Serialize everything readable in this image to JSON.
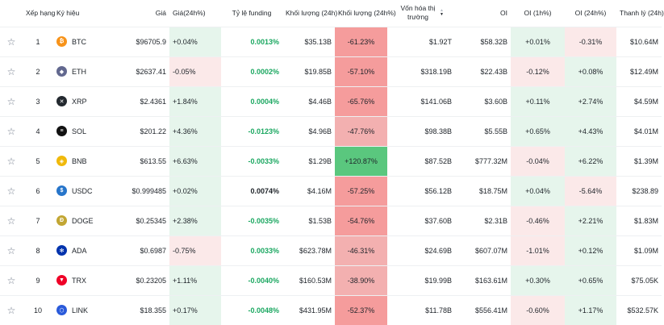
{
  "headers": {
    "star": "",
    "rank": "Xếp hạng",
    "symbol": "Ký hiệu",
    "price": "Giá",
    "change": "Giá(24h%)",
    "funding": "Tỷ lệ funding",
    "volume": "Khối lượng (24h)",
    "volume_pct": "Khối lượng (24h%)",
    "mcap": "Vốn hóa thị trường",
    "oi": "OI",
    "oi1h": "OI (1h%)",
    "oi24h": "OI (24h%)",
    "liq": "Thanh lý (24h)"
  },
  "colors": {
    "green_text": "#1aa760",
    "green_light": "#e6f5ec",
    "green_strong": "#5ac77e",
    "red_light": "#fbe9e9",
    "red_mid": "#f3b0b0",
    "red_strong": "#f59c9c"
  },
  "rows": [
    {
      "star": "☆",
      "rank": "1",
      "symbol": "BTC",
      "icon": "bitcoin-icon",
      "icon_color": "#f7931a",
      "icon_glyph": "₿",
      "price": "$96705.9",
      "change": "+0.04%",
      "change_bg": "green_light",
      "funding": "0.0013%",
      "funding_dir": "pos",
      "volume": "$35.13B",
      "volume_pct": "-61.23%",
      "vol_bg": "red_strong",
      "mcap": "$1.92T",
      "oi": "$58.32B",
      "oi1h": "+0.01%",
      "oi1h_bg": "green_light",
      "oi24h": "-0.31%",
      "oi24h_bg": "red_light",
      "liq": "$10.64M"
    },
    {
      "star": "☆",
      "rank": "2",
      "symbol": "ETH",
      "icon": "ethereum-icon",
      "icon_color": "#62688f",
      "icon_glyph": "◆",
      "price": "$2637.41",
      "change": "-0.05%",
      "change_bg": "red_light",
      "funding": "0.0002%",
      "funding_dir": "pos",
      "volume": "$19.85B",
      "volume_pct": "-57.10%",
      "vol_bg": "red_strong",
      "mcap": "$318.19B",
      "oi": "$22.43B",
      "oi1h": "-0.12%",
      "oi1h_bg": "red_light",
      "oi24h": "+0.08%",
      "oi24h_bg": "green_light",
      "liq": "$12.49M"
    },
    {
      "star": "☆",
      "rank": "3",
      "symbol": "XRP",
      "icon": "xrp-icon",
      "icon_color": "#23292f",
      "icon_glyph": "✕",
      "price": "$2.4361",
      "change": "+1.84%",
      "change_bg": "green_light",
      "funding": "0.0004%",
      "funding_dir": "pos",
      "volume": "$4.46B",
      "volume_pct": "-65.76%",
      "vol_bg": "red_strong",
      "mcap": "$141.06B",
      "oi": "$3.60B",
      "oi1h": "+0.11%",
      "oi1h_bg": "green_light",
      "oi24h": "+2.74%",
      "oi24h_bg": "green_light",
      "liq": "$4.59M"
    },
    {
      "star": "☆",
      "rank": "4",
      "symbol": "SOL",
      "icon": "solana-icon",
      "icon_color": "#111111",
      "icon_glyph": "≡",
      "price": "$201.22",
      "change": "+4.36%",
      "change_bg": "green_light",
      "funding": "-0.0123%",
      "funding_dir": "pos",
      "volume": "$4.96B",
      "volume_pct": "-47.76%",
      "vol_bg": "red_mid",
      "mcap": "$98.38B",
      "oi": "$5.55B",
      "oi1h": "+0.65%",
      "oi1h_bg": "green_light",
      "oi24h": "+4.43%",
      "oi24h_bg": "green_light",
      "liq": "$4.01M"
    },
    {
      "star": "☆",
      "rank": "5",
      "symbol": "BNB",
      "icon": "bnb-icon",
      "icon_color": "#f0b90b",
      "icon_glyph": "◈",
      "price": "$613.55",
      "change": "+6.63%",
      "change_bg": "green_light",
      "funding": "-0.0033%",
      "funding_dir": "pos",
      "volume": "$1.29B",
      "volume_pct": "+120.87%",
      "vol_bg": "green_strong",
      "mcap": "$87.52B",
      "oi": "$777.32M",
      "oi1h": "-0.04%",
      "oi1h_bg": "red_light",
      "oi24h": "+6.22%",
      "oi24h_bg": "green_light",
      "liq": "$1.39M"
    },
    {
      "star": "☆",
      "rank": "6",
      "symbol": "USDC",
      "icon": "usdc-icon",
      "icon_color": "#2775ca",
      "icon_glyph": "$",
      "price": "$0.999485",
      "change": "+0.02%",
      "change_bg": "green_light",
      "funding": "0.0074%",
      "funding_dir": "neg",
      "volume": "$4.16M",
      "volume_pct": "-57.25%",
      "vol_bg": "red_strong",
      "mcap": "$56.12B",
      "oi": "$18.75M",
      "oi1h": "+0.04%",
      "oi1h_bg": "green_light",
      "oi24h": "-5.64%",
      "oi24h_bg": "red_light",
      "liq": "$238.89"
    },
    {
      "star": "☆",
      "rank": "7",
      "symbol": "DOGE",
      "icon": "dogecoin-icon",
      "icon_color": "#c2a633",
      "icon_glyph": "Ð",
      "price": "$0.25345",
      "change": "+2.38%",
      "change_bg": "green_light",
      "funding": "-0.0035%",
      "funding_dir": "pos",
      "volume": "$1.53B",
      "volume_pct": "-54.76%",
      "vol_bg": "red_strong",
      "mcap": "$37.60B",
      "oi": "$2.31B",
      "oi1h": "-0.46%",
      "oi1h_bg": "red_light",
      "oi24h": "+2.21%",
      "oi24h_bg": "green_light",
      "liq": "$1.83M"
    },
    {
      "star": "☆",
      "rank": "8",
      "symbol": "ADA",
      "icon": "cardano-icon",
      "icon_color": "#0033ad",
      "icon_glyph": "✻",
      "price": "$0.6987",
      "change": "-0.75%",
      "change_bg": "red_light",
      "funding": "0.0033%",
      "funding_dir": "pos",
      "volume": "$623.78M",
      "volume_pct": "-46.31%",
      "vol_bg": "red_mid",
      "mcap": "$24.69B",
      "oi": "$607.07M",
      "oi1h": "-1.01%",
      "oi1h_bg": "red_light",
      "oi24h": "+0.12%",
      "oi24h_bg": "green_light",
      "liq": "$1.09M"
    },
    {
      "star": "☆",
      "rank": "9",
      "symbol": "TRX",
      "icon": "tron-icon",
      "icon_color": "#ef0027",
      "icon_glyph": "▼",
      "price": "$0.23205",
      "change": "+1.11%",
      "change_bg": "green_light",
      "funding": "-0.0040%",
      "funding_dir": "pos",
      "volume": "$160.53M",
      "volume_pct": "-38.90%",
      "vol_bg": "red_mid",
      "mcap": "$19.99B",
      "oi": "$163.61M",
      "oi1h": "+0.30%",
      "oi1h_bg": "green_light",
      "oi24h": "+0.65%",
      "oi24h_bg": "green_light",
      "liq": "$75.05K"
    },
    {
      "star": "☆",
      "rank": "10",
      "symbol": "LINK",
      "icon": "chainlink-icon",
      "icon_color": "#2a5ada",
      "icon_glyph": "⬡",
      "price": "$18.355",
      "change": "+0.17%",
      "change_bg": "green_light",
      "funding": "-0.0048%",
      "funding_dir": "pos",
      "volume": "$431.95M",
      "volume_pct": "-52.37%",
      "vol_bg": "red_strong",
      "mcap": "$11.78B",
      "oi": "$556.41M",
      "oi1h": "-0.60%",
      "oi1h_bg": "red_light",
      "oi24h": "+1.17%",
      "oi24h_bg": "green_light",
      "liq": "$532.57K"
    }
  ]
}
